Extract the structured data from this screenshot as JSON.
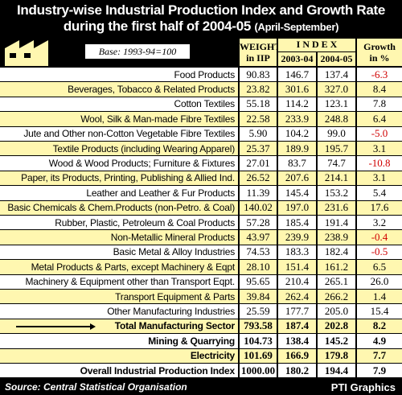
{
  "header": {
    "title_line1": "Industry-wise Industrial Production Index and Growth Rate",
    "title_line2": "during the first half of 2004-05",
    "title_note": "(April-September)",
    "base": "Base: 1993-94=100"
  },
  "columns": {
    "weight": "WEIGHT",
    "weight_sub": "in IIP",
    "index": "I N D E X",
    "year1": "2003-04",
    "year2": "2004-05",
    "growth": "Growth",
    "growth_sub": "in %"
  },
  "table": {
    "rows": [
      [
        "Food Products",
        "90.83",
        "146.7",
        "137.4",
        "-6.3"
      ],
      [
        "Beverages, Tobacco & Related Products",
        "23.82",
        "301.6",
        "327.0",
        "8.4"
      ],
      [
        "Cotton Textiles",
        "55.18",
        "114.2",
        "123.1",
        "7.8"
      ],
      [
        "Wool, Silk & Man-made Fibre Textiles",
        "22.58",
        "233.9",
        "248.8",
        "6.4"
      ],
      [
        "Jute and Other non-Cotton Vegetable Fibre Textiles",
        "5.90",
        "104.2",
        "99.0",
        "-5.0"
      ],
      [
        "Textile Products (including Wearing Apparel)",
        "25.37",
        "189.9",
        "195.7",
        "3.1"
      ],
      [
        "Wood & Wood Products; Furniture & Fixtures",
        "27.01",
        "83.7",
        "74.7",
        "-10.8"
      ],
      [
        "Paper, its Products, Printing, Publishing & Allied Ind.",
        "26.52",
        "207.6",
        "214.1",
        "3.1"
      ],
      [
        "Leather and Leather & Fur Products",
        "11.39",
        "145.4",
        "153.2",
        "5.4"
      ],
      [
        "Basic Chemicals & Chem.Products (non-Petro. & Coal)",
        "140.02",
        "197.0",
        "231.6",
        "17.6"
      ],
      [
        "Rubber, Plastic, Petroleum & Coal Products",
        "57.28",
        "185.4",
        "191.4",
        "3.2"
      ],
      [
        "Non-Metallic Mineral Products",
        "43.97",
        "239.9",
        "238.9",
        "-0.4"
      ],
      [
        "Basic Metal & Alloy Industries",
        "74.53",
        "183.3",
        "182.4",
        "-0.5"
      ],
      [
        "Metal Products & Parts, except Machinery & Eqpt",
        "28.10",
        "151.4",
        "161.2",
        "6.5"
      ],
      [
        "Machinery & Equipment other than Transport Eqpt.",
        "95.65",
        "210.4",
        "265.1",
        "26.0"
      ],
      [
        "Transport Equipment & Parts",
        "39.84",
        "262.4",
        "266.2",
        "1.4"
      ],
      [
        "Other Manufacturing Industries",
        "25.59",
        "177.7",
        "205.0",
        "15.4"
      ],
      [
        "Total Manufacturing Sector",
        "793.58",
        "187.4",
        "202.8",
        "8.2"
      ],
      [
        "Mining & Quarrying",
        "104.73",
        "138.4",
        "145.2",
        "4.9"
      ],
      [
        "Electricity",
        "101.69",
        "166.9",
        "179.8",
        "7.7"
      ],
      [
        "Overall Industrial Production Index",
        "1000.00",
        "180.2",
        "194.4",
        "7.9"
      ]
    ]
  },
  "footer": {
    "source": "Source: Central Statistical Organisation",
    "credit": "PTI Graphics"
  }
}
